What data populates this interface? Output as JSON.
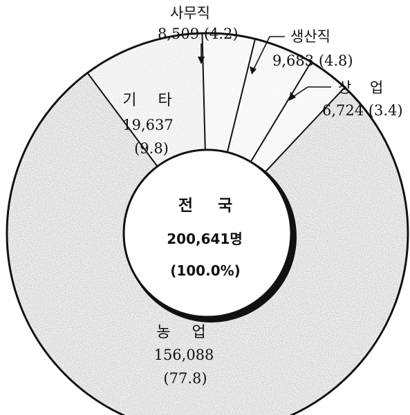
{
  "colors": {
    "background": "#ffffff",
    "ink": "#111111",
    "fill": "#e9e9e9"
  },
  "chart_data": {
    "type": "pie",
    "style": "donut",
    "center": {
      "title": "전 국",
      "value": "200,641명",
      "percent": "(100.0%)"
    },
    "slices": [
      {
        "label": "사무직",
        "value": 8509,
        "value_text": "8,509",
        "percent": 4.2,
        "percent_text": "(4.2)"
      },
      {
        "label": "생산직",
        "value": 9683,
        "value_text": "9,683",
        "percent": 4.8,
        "percent_text": "(4.8)"
      },
      {
        "label": "상 업",
        "value": 6724,
        "value_text": "6,724",
        "percent": 3.4,
        "percent_text": "(3.4)"
      },
      {
        "label": "농 업",
        "value": 156088,
        "value_text": "156,088",
        "percent": 77.8,
        "percent_text": "(77.8)"
      },
      {
        "label": "기 타",
        "value": 19637,
        "value_text": "19,637",
        "percent": 9.8,
        "percent_text": "(9.8)"
      }
    ]
  }
}
